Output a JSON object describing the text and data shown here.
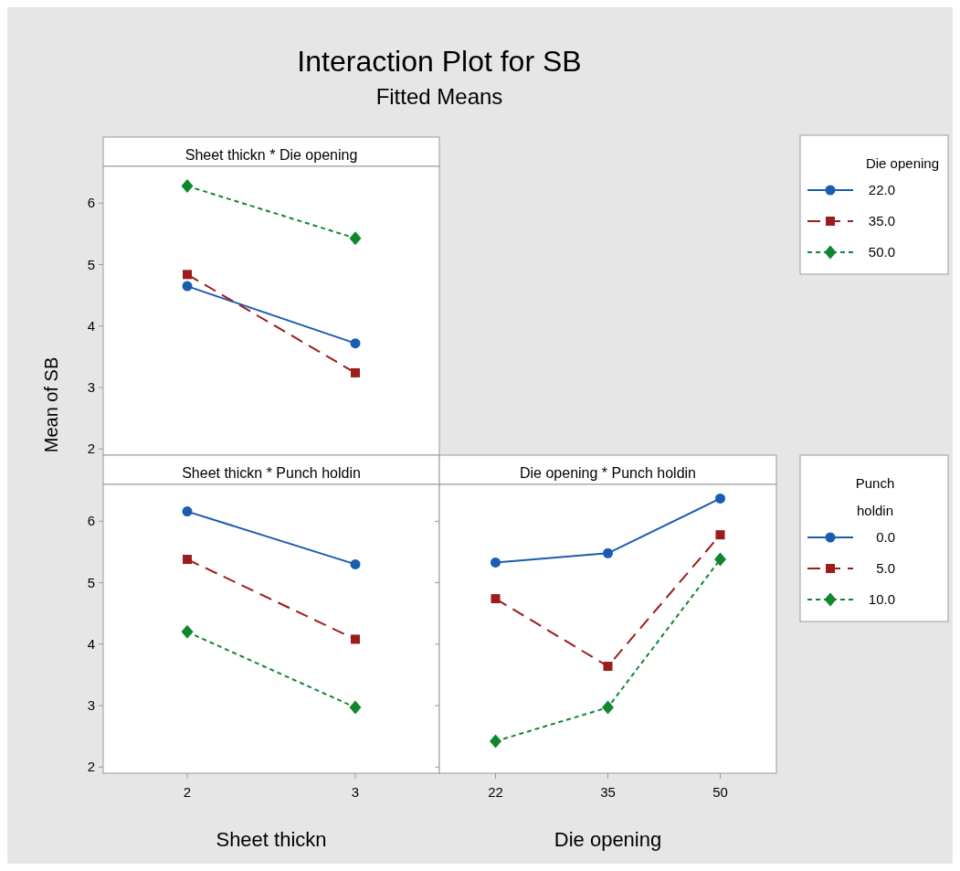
{
  "chart_data": [
    {
      "type": "line",
      "title": "Sheet thickn * Die opening",
      "annotations": [
        "Interaction Plot for SB",
        "Fitted Means"
      ],
      "ylabel": "Mean of SB",
      "categories": [
        "2",
        "3"
      ],
      "ylim": [
        1.9,
        6.6
      ],
      "yticks": [
        2,
        3,
        4,
        5,
        6
      ],
      "tick_labels": "y",
      "legend": "right",
      "legend_title": "Die opening",
      "series": [
        {
          "name": "22.0",
          "color": "#1a5cb0",
          "marker": "circle",
          "line_style": "solid",
          "values": [
            4.65,
            3.72
          ]
        },
        {
          "name": "35.0",
          "color": "#9b1c1c",
          "marker": "square",
          "line_style": "dashed",
          "values": [
            4.84,
            3.24
          ]
        },
        {
          "name": "50.0",
          "color": "#10862f",
          "marker": "diamond",
          "line_style": "dotted",
          "values": [
            6.28,
            5.43
          ]
        }
      ]
    },
    {
      "type": "line",
      "title": "Sheet thickn * Punch holdin",
      "xlabel": "Sheet thickn",
      "categories": [
        "2",
        "3"
      ],
      "ylim": [
        1.9,
        6.6
      ],
      "yticks": [
        2,
        3,
        4,
        5,
        6
      ],
      "series": [
        {
          "color": "#1a5cb0",
          "marker": "circle",
          "line_style": "solid",
          "values": [
            6.16,
            5.3
          ]
        },
        {
          "color": "#9b1c1c",
          "marker": "square",
          "line_style": "dashed",
          "values": [
            5.38,
            4.08
          ]
        },
        {
          "color": "#10862f",
          "marker": "diamond",
          "line_style": "dotted",
          "values": [
            4.2,
            2.97
          ]
        }
      ]
    },
    {
      "type": "line",
      "title": "Die opening * Punch holdin",
      "xlabel": "Die opening",
      "categories": [
        "22",
        "35",
        "50"
      ],
      "ylim": [
        1.9,
        6.6
      ],
      "yticks": [
        2,
        3,
        4,
        5,
        6
      ],
      "tick_labels": "x",
      "legend": "right",
      "legend_title": "Punch holdin",
      "series": [
        {
          "name": "0.0",
          "color": "#1a5cb0",
          "marker": "circle",
          "line_style": "solid",
          "values": [
            5.33,
            5.48,
            6.37
          ]
        },
        {
          "name": "5.0",
          "color": "#9b1c1c",
          "marker": "square",
          "line_style": "dashed",
          "values": [
            4.74,
            3.64,
            5.78
          ]
        },
        {
          "name": "10.0",
          "color": "#10862f",
          "marker": "diamond",
          "line_style": "dotted",
          "values": [
            2.42,
            2.97,
            5.38
          ]
        }
      ]
    }
  ]
}
